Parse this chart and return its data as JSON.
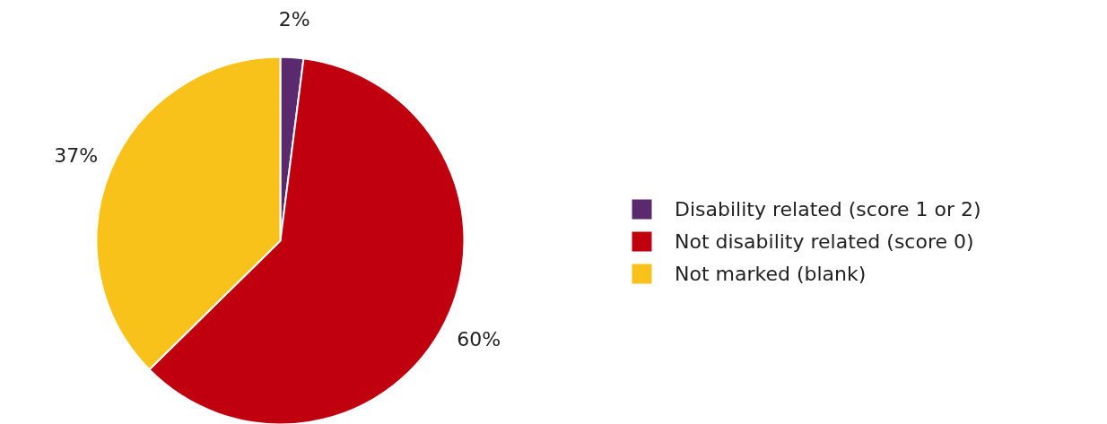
{
  "chart_data": {
    "type": "pie",
    "categories": [
      "Disability related (score 1 or 2)",
      "Not disability related (score 0)",
      "Not marked (blank)"
    ],
    "values": [
      2,
      60,
      37
    ],
    "value_labels": [
      "2%",
      "60%",
      "37%"
    ],
    "colors": [
      "#5b2a6e",
      "#c0000f",
      "#f9c21b"
    ],
    "legend": "right"
  }
}
